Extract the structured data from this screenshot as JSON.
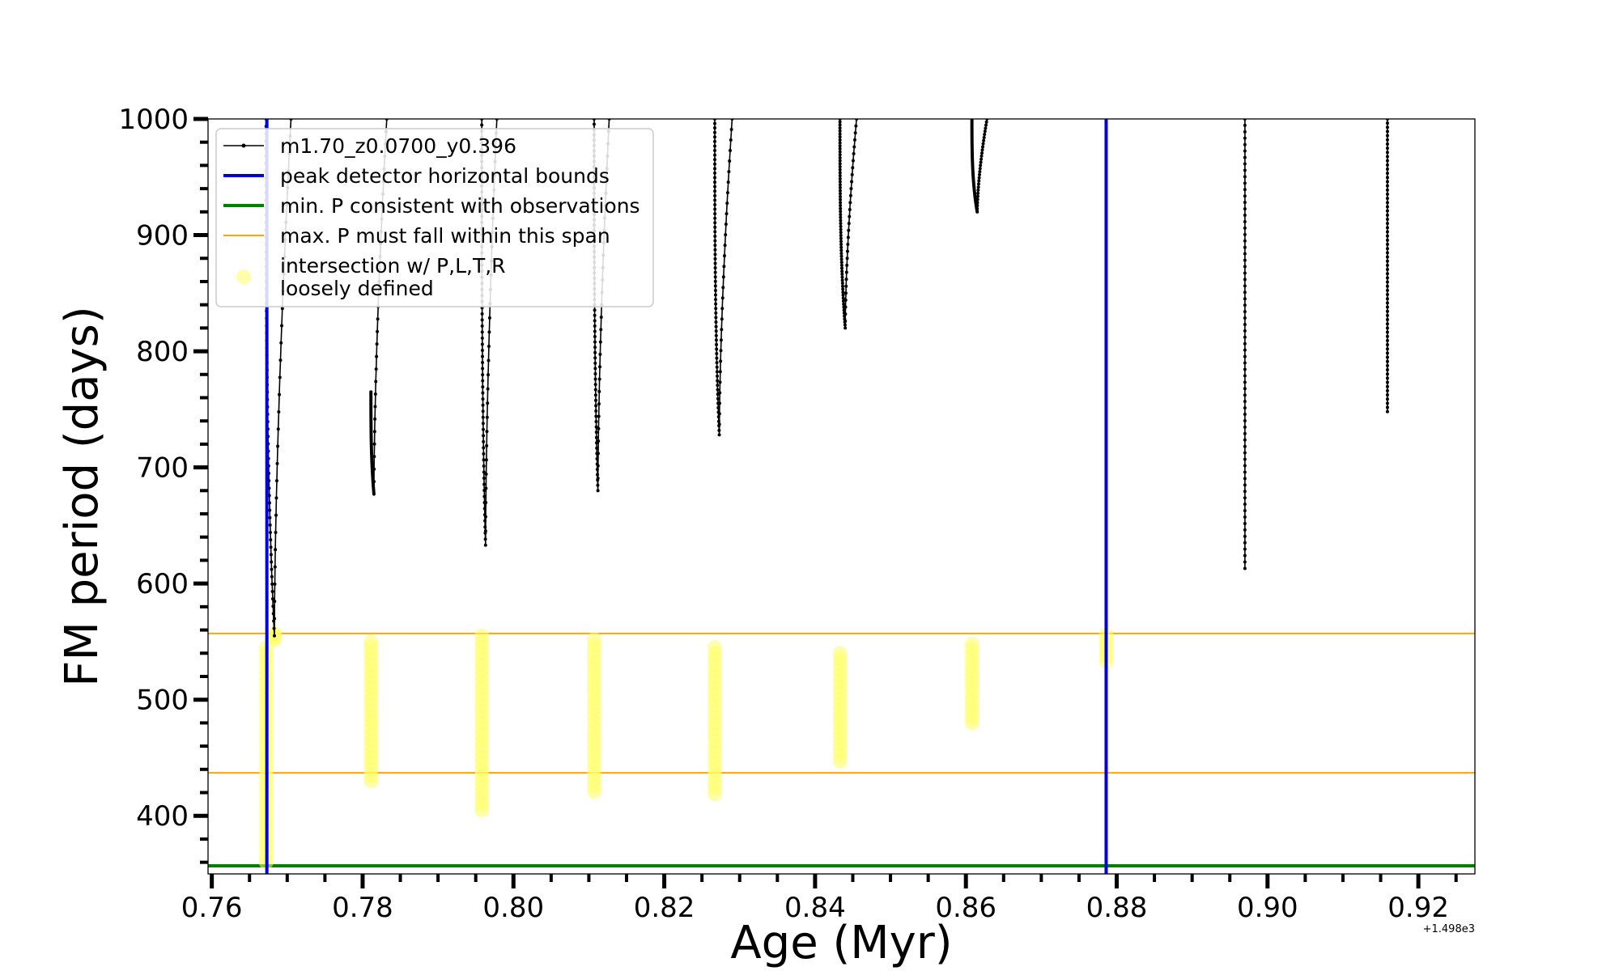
{
  "chart_data": {
    "type": "line",
    "title": "",
    "xlabel": "Age (Myr)",
    "ylabel": "FM period (days)",
    "x_offset_label": "+1.498e3",
    "xlim": [
      0.7595,
      0.9275
    ],
    "ylim": [
      350,
      1000
    ],
    "xticks": [
      "0.76",
      "0.78",
      "0.80",
      "0.82",
      "0.84",
      "0.86",
      "0.88",
      "0.90",
      "0.92"
    ],
    "yticks": [
      "400",
      "500",
      "600",
      "700",
      "800",
      "900",
      "1000"
    ],
    "grid": false,
    "legend_position": "top-left",
    "legend": [
      {
        "label": "m1.70_z0.0700_y0.396",
        "kind": "line-marker",
        "color": "#000000"
      },
      {
        "label": "peak detector horizontal bounds",
        "kind": "line",
        "color": "#0000dd"
      },
      {
        "label": "min. P consistent with observations",
        "kind": "line",
        "color": "#008000"
      },
      {
        "label": "max. P must fall within this span",
        "kind": "line",
        "color": "#ffa500"
      },
      {
        "label": "intersection w/ P,L,T,R",
        "label2": "loosely defined",
        "kind": "marker",
        "color": "#ffff66"
      }
    ],
    "vertical_lines": [
      {
        "x": 0.7673,
        "color": "#0000dd"
      },
      {
        "x": 0.8786,
        "color": "#0000dd"
      }
    ],
    "horizontal_lines": [
      {
        "y": 557,
        "color": "#ffa500"
      },
      {
        "y": 437,
        "color": "#ffa500"
      },
      {
        "y": 357,
        "color": "#008000"
      }
    ],
    "series": [
      {
        "name": "m1.70_z0.0700_y0.396",
        "color": "#000000",
        "branches": [
          {
            "x0": 0.7672,
            "top": 1000,
            "xmin": 0.7683,
            "ymin": 555,
            "xtop": 0.7705
          },
          {
            "x0": 0.7811,
            "top": 765,
            "xmin": 0.7815,
            "ymin": 677,
            "xtop": 0.7832
          },
          {
            "x0": 0.7958,
            "top": 1000,
            "xmin": 0.7963,
            "ymin": 633,
            "xtop": 0.7978
          },
          {
            "x0": 0.8107,
            "top": 1000,
            "xmin": 0.8112,
            "ymin": 680,
            "xtop": 0.8127
          },
          {
            "x0": 0.8267,
            "top": 1000,
            "xmin": 0.8273,
            "ymin": 728,
            "xtop": 0.829
          },
          {
            "x0": 0.8433,
            "top": 1000,
            "xmin": 0.844,
            "ymin": 820,
            "xtop": 0.8455
          },
          {
            "x0": 0.8608,
            "top": 1000,
            "xmin": 0.8615,
            "ymin": 920,
            "xtop": 0.8628
          },
          {
            "x0": 0.897,
            "top": 1000,
            "xmin": 0.897,
            "ymin": 613,
            "xtop": null
          },
          {
            "x0": 0.9159,
            "top": 1000,
            "xmin": 0.9159,
            "ymin": 748,
            "xtop": null
          }
        ]
      }
    ],
    "intersections": [
      {
        "x": 0.7672,
        "ymin": 360,
        "ymax": 545
      },
      {
        "x": 0.7683,
        "ymin": 552,
        "ymax": 557
      },
      {
        "x": 0.7811,
        "ymin": 430,
        "ymax": 550
      },
      {
        "x": 0.7958,
        "ymin": 405,
        "ymax": 555
      },
      {
        "x": 0.8107,
        "ymin": 421,
        "ymax": 552
      },
      {
        "x": 0.8267,
        "ymin": 419,
        "ymax": 545
      },
      {
        "x": 0.8433,
        "ymin": 447,
        "ymax": 540
      },
      {
        "x": 0.8608,
        "ymin": 480,
        "ymax": 548
      },
      {
        "x": 0.8786,
        "ymin": 533,
        "ymax": 556
      }
    ]
  }
}
